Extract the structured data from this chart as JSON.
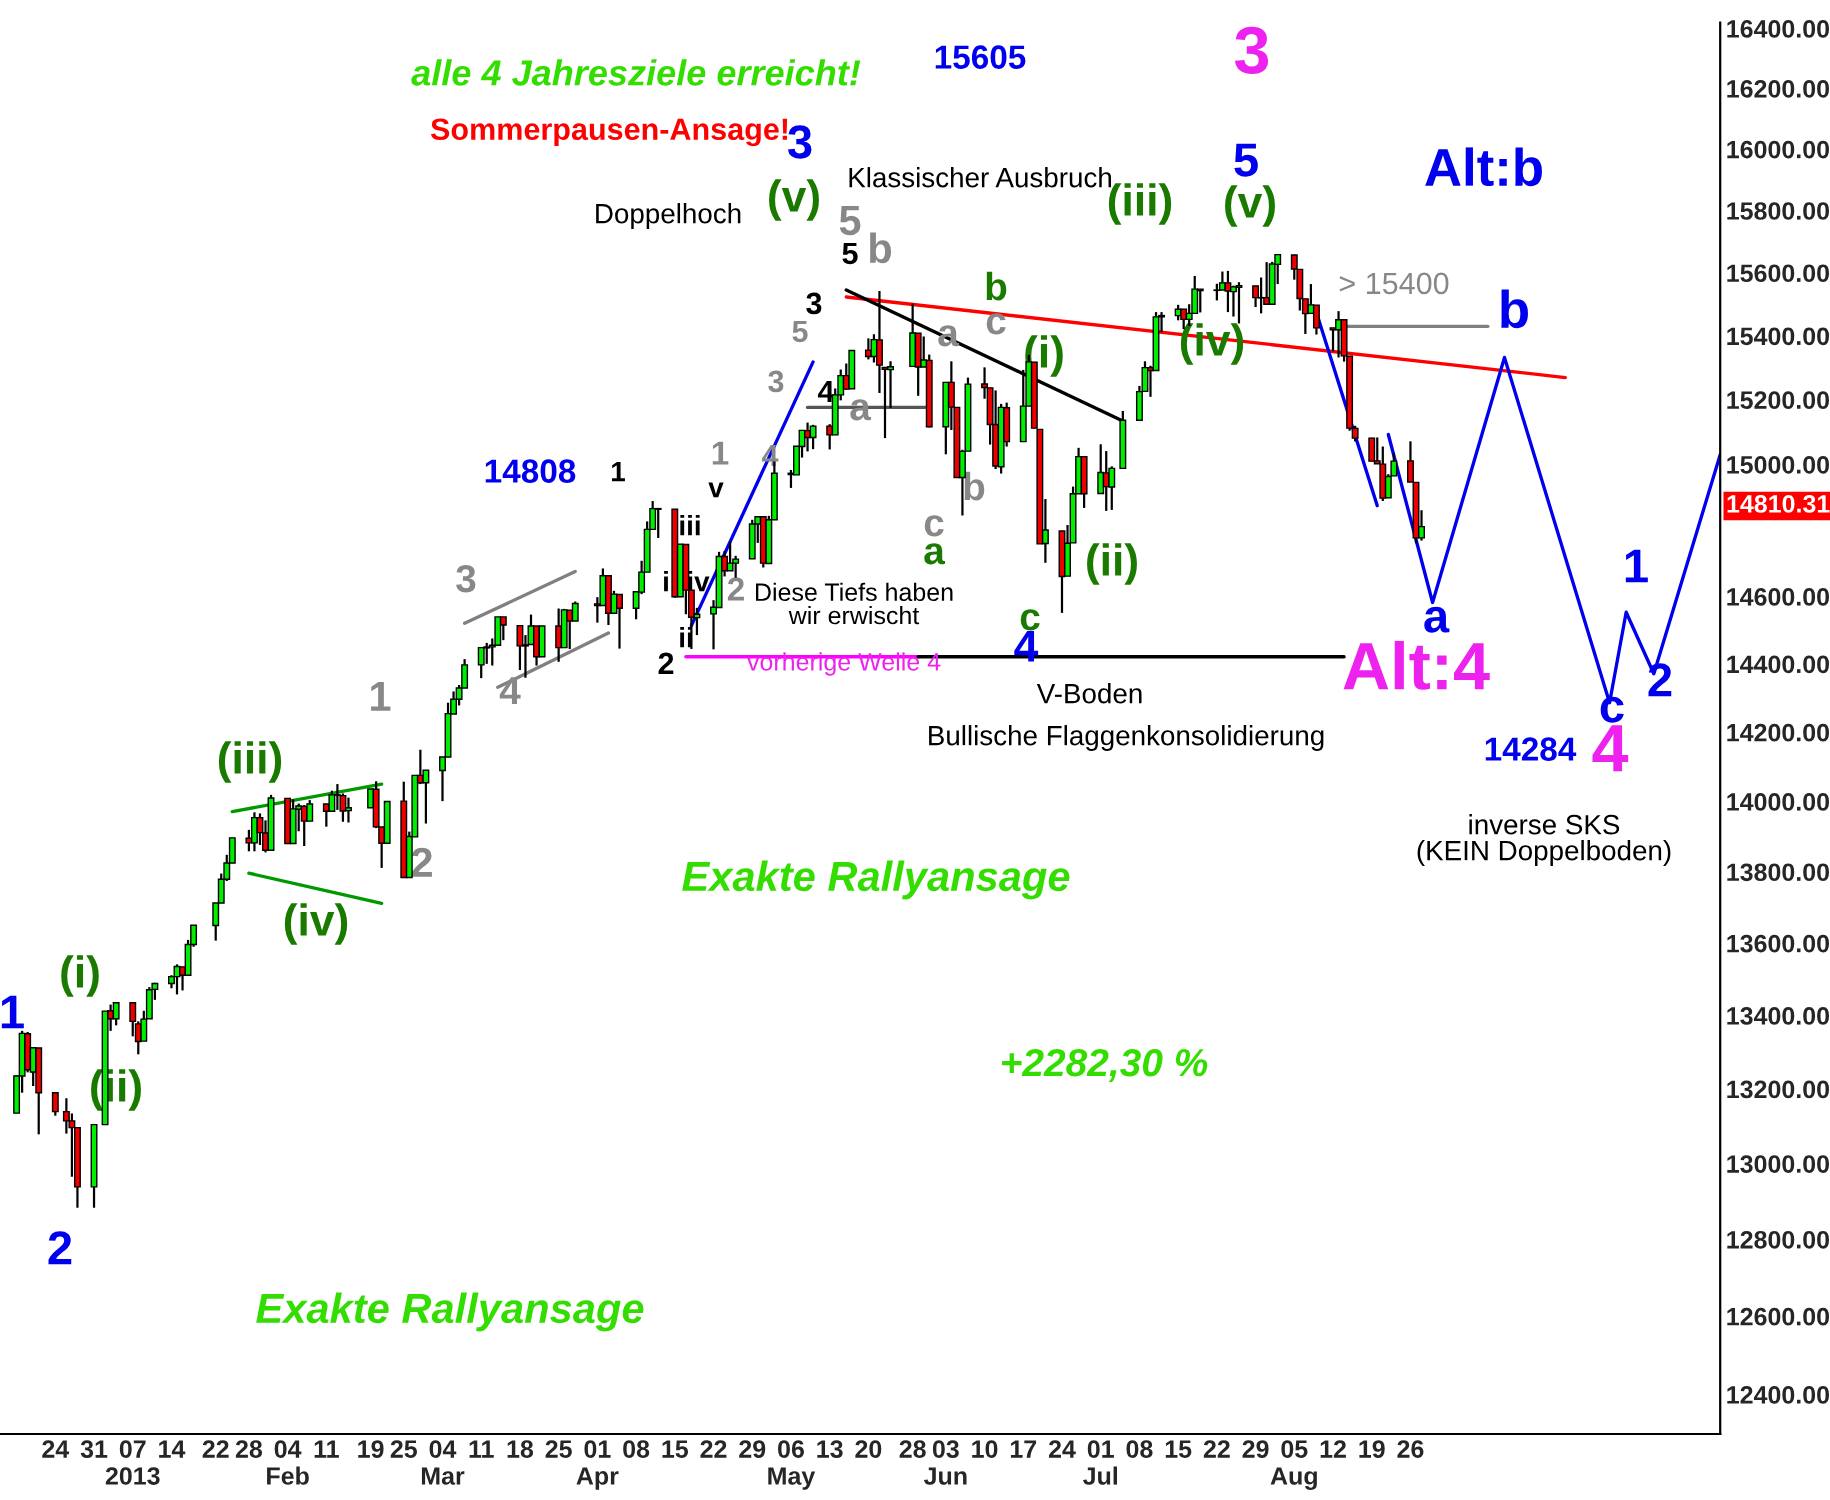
{
  "chart_data": {
    "type": "candlestick",
    "x": [
      "2012-12-17",
      "2012-12-18",
      "2012-12-19",
      "2012-12-20",
      "2012-12-21",
      "2012-12-24",
      "2012-12-26",
      "2012-12-27",
      "2012-12-28",
      "2012-12-31",
      "2013-01-02",
      "2013-01-03",
      "2013-01-04",
      "2013-01-07",
      "2013-01-08",
      "2013-01-09",
      "2013-01-10",
      "2013-01-11",
      "2013-01-14",
      "2013-01-15",
      "2013-01-16",
      "2013-01-17",
      "2013-01-18",
      "2013-01-22",
      "2013-01-23",
      "2013-01-24",
      "2013-01-25",
      "2013-01-28",
      "2013-01-29",
      "2013-01-30",
      "2013-01-31",
      "2013-02-01",
      "2013-02-04",
      "2013-02-05",
      "2013-02-06",
      "2013-02-07",
      "2013-02-08",
      "2013-02-11",
      "2013-02-12",
      "2013-02-13",
      "2013-02-14",
      "2013-02-15",
      "2013-02-19",
      "2013-02-20",
      "2013-02-21",
      "2013-02-22",
      "2013-02-25",
      "2013-02-26",
      "2013-02-27",
      "2013-02-28",
      "2013-03-01",
      "2013-03-04",
      "2013-03-05",
      "2013-03-06",
      "2013-03-07",
      "2013-03-08",
      "2013-03-11",
      "2013-03-12",
      "2013-03-13",
      "2013-03-14",
      "2013-03-15",
      "2013-03-18",
      "2013-03-19",
      "2013-03-20",
      "2013-03-21",
      "2013-03-22",
      "2013-03-25",
      "2013-03-26",
      "2013-03-27",
      "2013-03-28",
      "2013-04-01",
      "2013-04-02",
      "2013-04-03",
      "2013-04-04",
      "2013-04-05",
      "2013-04-08",
      "2013-04-09",
      "2013-04-10",
      "2013-04-11",
      "2013-04-12",
      "2013-04-15",
      "2013-04-16",
      "2013-04-17",
      "2013-04-18",
      "2013-04-19",
      "2013-04-22",
      "2013-04-23",
      "2013-04-24",
      "2013-04-25",
      "2013-04-26",
      "2013-04-29",
      "2013-04-30",
      "2013-05-01",
      "2013-05-02",
      "2013-05-03",
      "2013-05-06",
      "2013-05-07",
      "2013-05-08",
      "2013-05-09",
      "2013-05-10",
      "2013-05-13",
      "2013-05-14",
      "2013-05-15",
      "2013-05-16",
      "2013-05-17",
      "2013-05-20",
      "2013-05-21",
      "2013-05-22",
      "2013-05-23",
      "2013-05-24",
      "2013-05-28",
      "2013-05-29",
      "2013-05-30",
      "2013-05-31",
      "2013-06-03",
      "2013-06-04",
      "2013-06-05",
      "2013-06-06",
      "2013-06-07",
      "2013-06-10",
      "2013-06-11",
      "2013-06-12",
      "2013-06-13",
      "2013-06-14",
      "2013-06-17",
      "2013-06-18",
      "2013-06-19",
      "2013-06-20",
      "2013-06-21",
      "2013-06-24",
      "2013-06-25",
      "2013-06-26",
      "2013-06-27",
      "2013-06-28",
      "2013-07-01",
      "2013-07-02",
      "2013-07-03",
      "2013-07-05",
      "2013-07-08",
      "2013-07-09",
      "2013-07-10",
      "2013-07-11",
      "2013-07-12",
      "2013-07-15",
      "2013-07-16",
      "2013-07-17",
      "2013-07-18",
      "2013-07-19",
      "2013-07-22",
      "2013-07-23",
      "2013-07-24",
      "2013-07-25",
      "2013-07-26",
      "2013-07-29",
      "2013-07-30",
      "2013-07-31",
      "2013-08-01",
      "2013-08-02",
      "2013-08-05",
      "2013-08-06",
      "2013-08-07",
      "2013-08-08",
      "2013-08-09",
      "2013-08-12",
      "2013-08-13",
      "2013-08-14",
      "2013-08-15",
      "2013-08-16",
      "2013-08-19",
      "2013-08-20",
      "2013-08-21",
      "2013-08-22",
      "2013-08-23",
      "2013-08-26",
      "2013-08-27",
      "2013-08-28"
    ],
    "ohlc": [
      [
        13135,
        13237,
        13135,
        13235
      ],
      [
        13235,
        13358,
        13190,
        13351
      ],
      [
        13350,
        13355,
        13245,
        13252
      ],
      [
        13246,
        13313,
        13208,
        13312
      ],
      [
        13311,
        13311,
        13078,
        13190
      ],
      [
        13190,
        13190,
        13128,
        13139
      ],
      [
        13139,
        13175,
        13080,
        13114
      ],
      [
        13114,
        13134,
        12965,
        13096
      ],
      [
        13096,
        13096,
        12883,
        12938
      ],
      [
        12938,
        13105,
        12883,
        13104
      ],
      [
        13104,
        13412,
        13104,
        13412
      ],
      [
        13413,
        13430,
        13358,
        13391
      ],
      [
        13391,
        13436,
        13373,
        13435
      ],
      [
        13435,
        13435,
        13343,
        13384
      ],
      [
        13377,
        13384,
        13294,
        13329
      ],
      [
        13330,
        13413,
        13330,
        13390
      ],
      [
        13391,
        13478,
        13391,
        13471
      ],
      [
        13472,
        13490,
        13443,
        13488
      ],
      [
        13488,
        13511,
        13475,
        13507
      ],
      [
        13507,
        13541,
        13458,
        13535
      ],
      [
        13534,
        13534,
        13469,
        13511
      ],
      [
        13511,
        13609,
        13511,
        13596
      ],
      [
        13596,
        13650,
        13590,
        13650
      ],
      [
        13649,
        13712,
        13607,
        13712
      ],
      [
        13712,
        13795,
        13712,
        13779
      ],
      [
        13779,
        13848,
        13774,
        13825
      ],
      [
        13825,
        13896,
        13825,
        13896
      ],
      [
        13895,
        13919,
        13858,
        13882
      ],
      [
        13882,
        13969,
        13858,
        13954
      ],
      [
        13954,
        13966,
        13876,
        13911
      ],
      [
        13910,
        13946,
        13855,
        13861
      ],
      [
        13861,
        14019,
        13861,
        14010
      ],
      [
        14009,
        14009,
        13879,
        13880
      ],
      [
        13880,
        14006,
        13880,
        13979
      ],
      [
        13978,
        13994,
        13915,
        13987
      ],
      [
        13986,
        13990,
        13873,
        13944
      ],
      [
        13944,
        14004,
        13944,
        13993
      ],
      [
        13993,
        13993,
        13928,
        13972
      ],
      [
        13972,
        14031,
        13972,
        14019
      ],
      [
        14019,
        14050,
        13976,
        14018
      ],
      [
        14017,
        14023,
        13942,
        13973
      ],
      [
        13974,
        14011,
        13940,
        13982
      ],
      [
        13982,
        14036,
        13982,
        14036
      ],
      [
        14035,
        14058,
        13924,
        13928
      ],
      [
        13927,
        13927,
        13811,
        13881
      ],
      [
        13881,
        14000,
        13881,
        14000
      ],
      [
        14001,
        14057,
        13784,
        13784
      ],
      [
        13784,
        13914,
        13784,
        13900
      ],
      [
        13899,
        14076,
        13899,
        14075
      ],
      [
        14075,
        14149,
        14050,
        14054
      ],
      [
        14054,
        14090,
        13937,
        14090
      ],
      [
        14089,
        14128,
        14001,
        14128
      ],
      [
        14128,
        14286,
        14128,
        14254
      ],
      [
        14253,
        14319,
        14253,
        14296
      ],
      [
        14296,
        14338,
        14278,
        14329
      ],
      [
        14329,
        14414,
        14329,
        14397
      ],
      [
        14397,
        14448,
        14358,
        14448
      ],
      [
        14447,
        14462,
        14400,
        14450
      ],
      [
        14450,
        14475,
        14395,
        14455
      ],
      [
        14455,
        14539,
        14455,
        14539
      ],
      [
        14539,
        14539,
        14470,
        14515
      ],
      [
        14513,
        14513,
        14382,
        14453
      ],
      [
        14453,
        14485,
        14359,
        14456
      ],
      [
        14457,
        14546,
        14457,
        14512
      ],
      [
        14512,
        14512,
        14395,
        14421
      ],
      [
        14421,
        14512,
        14421,
        14512
      ],
      [
        14512,
        14564,
        14406,
        14448
      ],
      [
        14448,
        14563,
        14448,
        14560
      ],
      [
        14559,
        14559,
        14444,
        14527
      ],
      [
        14527,
        14585,
        14527,
        14579
      ],
      [
        14578,
        14598,
        14522,
        14573
      ],
      [
        14573,
        14684,
        14573,
        14662
      ],
      [
        14662,
        14662,
        14515,
        14550
      ],
      [
        14550,
        14617,
        14550,
        14607
      ],
      [
        14606,
        14606,
        14445,
        14565
      ],
      [
        14565,
        14614,
        14532,
        14614
      ],
      [
        14613,
        14707,
        14607,
        14673
      ],
      [
        14673,
        14826,
        14673,
        14802
      ],
      [
        14802,
        14888,
        14802,
        14865
      ],
      [
        14863,
        14865,
        14776,
        14865
      ],
      [
        14863,
        14863,
        14596,
        14599
      ],
      [
        14599,
        14757,
        14599,
        14757
      ],
      [
        14756,
        14756,
        14547,
        14619
      ],
      [
        14619,
        14620,
        14444,
        14538
      ],
      [
        14537,
        14566,
        14485,
        14547
      ],
      [
        14548,
        14589,
        14443,
        14568
      ],
      [
        14567,
        14734,
        14567,
        14720
      ],
      [
        14720,
        14736,
        14660,
        14677
      ],
      [
        14677,
        14763,
        14677,
        14700
      ],
      [
        14700,
        14722,
        14656,
        14712
      ],
      [
        14713,
        14831,
        14713,
        14818
      ],
      [
        14818,
        14840,
        14761,
        14840
      ],
      [
        14840,
        14840,
        14687,
        14700
      ],
      [
        14699,
        14843,
        14699,
        14831
      ],
      [
        14831,
        15009,
        14831,
        14973
      ],
      [
        14973,
        14983,
        14928,
        14969
      ],
      [
        14968,
        15057,
        14968,
        15056
      ],
      [
        15055,
        15106,
        15021,
        15105
      ],
      [
        15104,
        15129,
        15040,
        15083
      ],
      [
        15083,
        15122,
        15047,
        15118
      ],
      [
        15118,
        15124,
        15046,
        15091
      ],
      [
        15091,
        15235,
        15091,
        15215
      ],
      [
        15215,
        15294,
        15198,
        15275
      ],
      [
        15275,
        15313,
        15231,
        15233
      ],
      [
        15234,
        15354,
        15234,
        15354
      ],
      [
        15355,
        15392,
        15326,
        15335
      ],
      [
        15335,
        15405,
        15316,
        15388
      ],
      [
        15387,
        15542,
        15221,
        15308
      ],
      [
        15301,
        15301,
        15081,
        15295
      ],
      [
        15294,
        15320,
        15174,
        15303
      ],
      [
        15304,
        15502,
        15304,
        15409
      ],
      [
        15408,
        15408,
        15212,
        15302
      ],
      [
        15302,
        15398,
        15302,
        15324
      ],
      [
        15323,
        15341,
        15114,
        15116
      ],
      [
        15116,
        15255,
        15031,
        15254
      ],
      [
        15254,
        15320,
        15106,
        15177
      ],
      [
        15176,
        15176,
        14959,
        14960
      ],
      [
        14960,
        15045,
        14844,
        15040
      ],
      [
        15041,
        15269,
        15041,
        15248
      ],
      [
        15249,
        15301,
        15203,
        15238
      ],
      [
        15237,
        15237,
        15061,
        15123
      ],
      [
        15123,
        15229,
        14986,
        14995
      ],
      [
        14993,
        15187,
        14972,
        15176
      ],
      [
        15175,
        15191,
        15055,
        15070
      ],
      [
        15070,
        15293,
        15070,
        15180
      ],
      [
        15180,
        15340,
        15180,
        15318
      ],
      [
        15317,
        15318,
        15111,
        15112
      ],
      [
        15108,
        15108,
        14758,
        14758
      ],
      [
        14759,
        14894,
        14701,
        14800
      ],
      [
        14797,
        14797,
        14551,
        14660
      ],
      [
        14661,
        14815,
        14661,
        14760
      ],
      [
        14761,
        14932,
        14761,
        14910
      ],
      [
        14910,
        15051,
        14910,
        15024
      ],
      [
        15024,
        15024,
        14867,
        14910
      ],
      [
        14911,
        15062,
        14911,
        14975
      ],
      [
        14974,
        15041,
        14858,
        14932
      ],
      [
        14931,
        14994,
        14861,
        14988
      ],
      [
        14988,
        15165,
        14988,
        15136
      ],
      [
        15136,
        15243,
        15136,
        15225
      ],
      [
        15226,
        15320,
        15226,
        15300
      ],
      [
        15300,
        15306,
        15209,
        15291
      ],
      [
        15291,
        15475,
        15291,
        15460
      ],
      [
        15460,
        15475,
        15412,
        15464
      ],
      [
        15464,
        15498,
        15449,
        15484
      ],
      [
        15484,
        15484,
        15421,
        15452
      ],
      [
        15452,
        15500,
        15431,
        15471
      ],
      [
        15471,
        15590,
        15471,
        15548
      ],
      [
        15548,
        15548,
        15474,
        15543
      ],
      [
        15544,
        15565,
        15512,
        15545
      ],
      [
        15545,
        15604,
        15545,
        15568
      ],
      [
        15568,
        15606,
        15475,
        15542
      ],
      [
        15540,
        15559,
        15461,
        15555
      ],
      [
        15554,
        15570,
        15439,
        15559
      ],
      [
        15558,
        15558,
        15491,
        15521
      ],
      [
        15521,
        15585,
        15471,
        15520
      ],
      [
        15521,
        15634,
        15500,
        15500
      ],
      [
        15500,
        15635,
        15500,
        15628
      ],
      [
        15627,
        15658,
        15564,
        15658
      ],
      [
        15657,
        15657,
        15578,
        15612
      ],
      [
        15611,
        15611,
        15480,
        15518
      ],
      [
        15517,
        15517,
        15406,
        15470
      ],
      [
        15471,
        15564,
        15471,
        15498
      ],
      [
        15497,
        15497,
        15404,
        15425
      ],
      [
        15425,
        15425,
        15351,
        15419
      ],
      [
        15419,
        15478,
        15332,
        15451
      ],
      [
        15451,
        15451,
        15319,
        15337
      ],
      [
        15336,
        15336,
        15104,
        15112
      ],
      [
        15111,
        15119,
        15071,
        15081
      ],
      [
        15081,
        15082,
        15010,
        15010
      ],
      [
        15011,
        15083,
        15002,
        15002
      ],
      [
        15001,
        15055,
        14888,
        14897
      ],
      [
        14898,
        14970,
        14898,
        14963
      ],
      [
        14965,
        15035,
        14965,
        15010
      ],
      [
        15011,
        15071,
        14946,
        14946
      ],
      [
        14945,
        14945,
        14760,
        14776
      ],
      [
        14776,
        14860,
        14768,
        14810.31
      ]
    ],
    "series": [
      {
        "type": "line",
        "color": "#ff0000",
        "x": [
          "2013-05-16",
          "2013-09-23"
        ],
        "values": [
          15523,
          15269
        ]
      },
      {
        "type": "line",
        "color": "#0000ee",
        "x": [
          "2013-08-22",
          "2013-08-30",
          "2013-09-12",
          "2013-10-01",
          "2013-10-04",
          "2013-10-09",
          "2013-10-21"
        ],
        "values": [
          15092,
          14582,
          15332,
          14286,
          14553,
          14371,
          15030
        ]
      },
      {
        "type": "line",
        "color": "#0000ee",
        "x": [
          "2013-08-09",
          "2013-08-20"
        ],
        "values": [
          15474,
          14874
        ]
      },
      {
        "type": "line",
        "color": "#0000ee",
        "x": [
          "2013-04-18",
          "2013-05-10"
        ],
        "values": [
          14513,
          15318
        ]
      },
      {
        "type": "line",
        "color": "#ff00ff",
        "x": [
          "2013-04-17",
          "2013-05-29"
        ],
        "values": [
          14421,
          14421
        ]
      },
      {
        "type": "line",
        "color": "#000000",
        "x": [
          "2013-05-29",
          "2013-08-14"
        ],
        "values": [
          14421,
          14421
        ]
      },
      {
        "type": "line",
        "color": "#000000",
        "x": [
          "2013-05-16",
          "2013-07-05"
        ],
        "values": [
          15545,
          15134
        ]
      },
      {
        "type": "line",
        "color": "#009900",
        "x": [
          "2013-01-25",
          "2013-02-21"
        ],
        "values": [
          13971,
          14050
        ]
      },
      {
        "type": "line",
        "color": "#009900",
        "x": [
          "2013-01-28",
          "2013-02-21"
        ],
        "values": [
          13796,
          13711
        ]
      },
      {
        "type": "line",
        "color": "#808080",
        "x": [
          "2013-03-08",
          "2013-03-28"
        ],
        "values": [
          14520,
          14675
        ]
      },
      {
        "type": "line",
        "color": "#808080",
        "x": [
          "2013-03-14",
          "2013-04-03"
        ],
        "values": [
          14331,
          14491
        ]
      },
      {
        "type": "line",
        "color": "#555555",
        "x": [
          "2013-05-09",
          "2013-05-31"
        ],
        "values": [
          15176,
          15176
        ]
      },
      {
        "type": "line",
        "color": "#808080",
        "x": [
          "2013-08-13",
          "2013-09-09"
        ],
        "values": [
          15430,
          15430
        ]
      }
    ],
    "xlim": [
      "2012-12-14",
      "2013-10-21"
    ],
    "xticks": [
      {
        "value": "2012-12-24",
        "label": "24"
      },
      {
        "value": "2012-12-31",
        "label": "31"
      },
      {
        "value": "2013-01-07",
        "label": "07\n2013"
      },
      {
        "value": "2013-01-14",
        "label": "14"
      },
      {
        "value": "2013-01-22",
        "label": "22"
      },
      {
        "value": "2013-01-28",
        "label": "28"
      },
      {
        "value": "2013-02-04",
        "label": "04\nFeb"
      },
      {
        "value": "2013-02-11",
        "label": "11"
      },
      {
        "value": "2013-02-19",
        "label": "19"
      },
      {
        "value": "2013-02-25",
        "label": "25"
      },
      {
        "value": "2013-03-04",
        "label": "04\nMar"
      },
      {
        "value": "2013-03-11",
        "label": "11"
      },
      {
        "value": "2013-03-18",
        "label": "18"
      },
      {
        "value": "2013-03-25",
        "label": "25"
      },
      {
        "value": "2013-04-01",
        "label": "01\nApr"
      },
      {
        "value": "2013-04-08",
        "label": "08"
      },
      {
        "value": "2013-04-15",
        "label": "15"
      },
      {
        "value": "2013-04-22",
        "label": "22"
      },
      {
        "value": "2013-04-29",
        "label": "29"
      },
      {
        "value": "2013-05-06",
        "label": "06\nMay"
      },
      {
        "value": "2013-05-13",
        "label": "13"
      },
      {
        "value": "2013-05-20",
        "label": "20"
      },
      {
        "value": "2013-05-28",
        "label": "28"
      },
      {
        "value": "2013-06-03",
        "label": "03\nJun"
      },
      {
        "value": "2013-06-10",
        "label": "10"
      },
      {
        "value": "2013-06-17",
        "label": "17"
      },
      {
        "value": "2013-06-24",
        "label": "24"
      },
      {
        "value": "2013-07-01",
        "label": "01\nJul"
      },
      {
        "value": "2013-07-08",
        "label": "08"
      },
      {
        "value": "2013-07-15",
        "label": "15"
      },
      {
        "value": "2013-07-22",
        "label": "22"
      },
      {
        "value": "2013-07-29",
        "label": "29"
      },
      {
        "value": "2013-08-05",
        "label": "05\nAug"
      },
      {
        "value": "2013-08-12",
        "label": "12"
      },
      {
        "value": "2013-08-19",
        "label": "19"
      },
      {
        "value": "2013-08-26",
        "label": "26"
      }
    ],
    "log": true,
    "ylim": [
      12300,
      16420
    ],
    "yticks": [
      {
        "value": 12400,
        "label": "12400.00"
      },
      {
        "value": 12600,
        "label": "12600.00"
      },
      {
        "value": 12800,
        "label": "12800.00"
      },
      {
        "value": 13000,
        "label": "13000.00"
      },
      {
        "value": 13200,
        "label": "13200.00"
      },
      {
        "value": 13400,
        "label": "13400.00"
      },
      {
        "value": 13600,
        "label": "13600.00"
      },
      {
        "value": 13800,
        "label": "13800.00"
      },
      {
        "value": 14000,
        "label": "14000.00"
      },
      {
        "value": 14200,
        "label": "14200.00"
      },
      {
        "value": 14400,
        "label": "14400.00"
      },
      {
        "value": 14600,
        "label": "14600.00"
      },
      {
        "value": 15000,
        "label": "15000.00"
      },
      {
        "value": 15200,
        "label": "15200.00"
      },
      {
        "value": 15400,
        "label": "15400.00"
      },
      {
        "value": 15600,
        "label": "15600.00"
      },
      {
        "value": 15800,
        "label": "15800.00"
      },
      {
        "value": 16000,
        "label": "16000.00"
      },
      {
        "value": 16200,
        "label": "16200.00"
      },
      {
        "value": 16400,
        "label": "16400.00"
      }
    ],
    "grid": false,
    "annotations": [
      "alle 4 Jahresziele erreicht!",
      "Sommerpausen-Ansage!",
      "15605",
      "3",
      "5",
      "(v)",
      "3",
      "(v)",
      "Doppelhoch",
      "Klassischer Ausbruch",
      "5",
      "5",
      "b",
      "(iii)",
      "(iv)",
      "> 15400",
      "Alt:b",
      "b",
      "14808",
      "1",
      "3",
      "4",
      "1",
      "v",
      "iii",
      "i",
      "iv",
      "2",
      "ii",
      "2",
      "3",
      "5",
      "3",
      "4",
      "4",
      "a",
      "b",
      "c",
      "a",
      "b",
      "c",
      "a",
      "(i)",
      "(ii)",
      "c",
      "4",
      "Diese Tiefs haben\nwir erwischt",
      "vorherige Welle 4",
      "V-Boden",
      "Bullische Flaggenkonsolidierung",
      "Exakte Rallyansage",
      "Exakte Rallyansage",
      "(iii)",
      "(iv)",
      "1",
      "2",
      "(i)",
      "(ii)",
      "2",
      "1",
      "a",
      "Alt:4",
      "1",
      "2",
      "c",
      "4",
      "14284",
      "inverse SKS\n(KEIN Doppelboden)",
      "+2282,30 %",
      "14810.31"
    ]
  }
}
